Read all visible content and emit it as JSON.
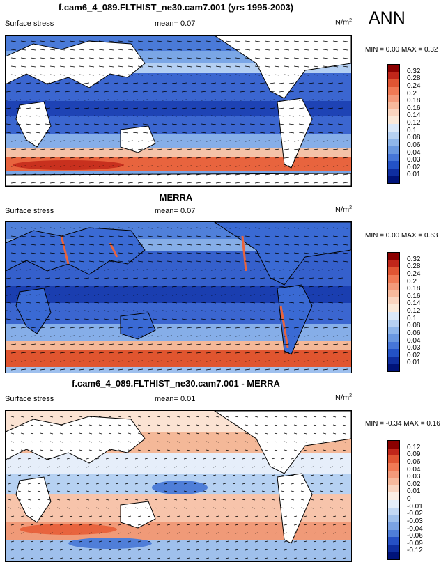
{
  "season": "ANN",
  "panels": [
    {
      "title": "f.cam6_4_089.FLTHIST_ne30.cam7.001 (yrs 1995-2003)",
      "left_label": "Surface stress",
      "mean_label": "mean=  0.07",
      "units": "N/m",
      "units_sup": "2",
      "minmax": "MIN =  0.00 MAX =  0.32",
      "colorbar_ticks": [
        "0.32",
        "0.28",
        "0.24",
        "0.2",
        "0.18",
        "0.16",
        "0.14",
        "0.12",
        "0.1",
        "0.08",
        "0.06",
        "0.04",
        "0.03",
        "0.02",
        "0.01"
      ],
      "colors": [
        "#8b0000",
        "#c0261a",
        "#e05533",
        "#f07a55",
        "#f49a7a",
        "#f7b99c",
        "#fad5c0",
        "#fbe9d9",
        "#dbe8f8",
        "#b6d1f2",
        "#8fb6ea",
        "#6a98e0",
        "#4676d8",
        "#2352c6",
        "#0f2ea0",
        "#00137a"
      ]
    },
    {
      "title": "MERRA",
      "left_label": "Surface stress",
      "mean_label": "mean=  0.07",
      "units": "N/m",
      "units_sup": "2",
      "minmax": "MIN =  0.00 MAX =  0.63",
      "colorbar_ticks": [
        "0.32",
        "0.28",
        "0.24",
        "0.2",
        "0.18",
        "0.16",
        "0.14",
        "0.12",
        "0.1",
        "0.08",
        "0.06",
        "0.04",
        "0.03",
        "0.02",
        "0.01"
      ],
      "colors": [
        "#8b0000",
        "#c0261a",
        "#e05533",
        "#f07a55",
        "#f49a7a",
        "#f7b99c",
        "#fad5c0",
        "#fbe9d9",
        "#dbe8f8",
        "#b6d1f2",
        "#8fb6ea",
        "#6a98e0",
        "#4676d8",
        "#2352c6",
        "#0f2ea0",
        "#00137a"
      ]
    },
    {
      "title": "f.cam6_4_089.FLTHIST_ne30.cam7.001 - MERRA",
      "left_label": "Surface stress",
      "mean_label": "mean=  0.01",
      "units": "N/m",
      "units_sup": "2",
      "minmax": "MIN = -0.34 MAX =  0.16",
      "colorbar_ticks": [
        "0.12",
        "0.09",
        "0.06",
        "0.04",
        "0.03",
        "0.02",
        "0.01",
        "0",
        "-0.01",
        "-0.02",
        "-0.03",
        "-0.04",
        "-0.06",
        "-0.09",
        "-0.12"
      ],
      "colors": [
        "#8b0000",
        "#c0261a",
        "#e05533",
        "#f07a55",
        "#f49a7a",
        "#f7b99c",
        "#fad5c0",
        "#fbeee4",
        "#e4eefa",
        "#c2d8f4",
        "#9fc0ec",
        "#7aa2e2",
        "#4f7ed8",
        "#2650c4",
        "#0f2ea0",
        "#00137a"
      ]
    }
  ]
}
